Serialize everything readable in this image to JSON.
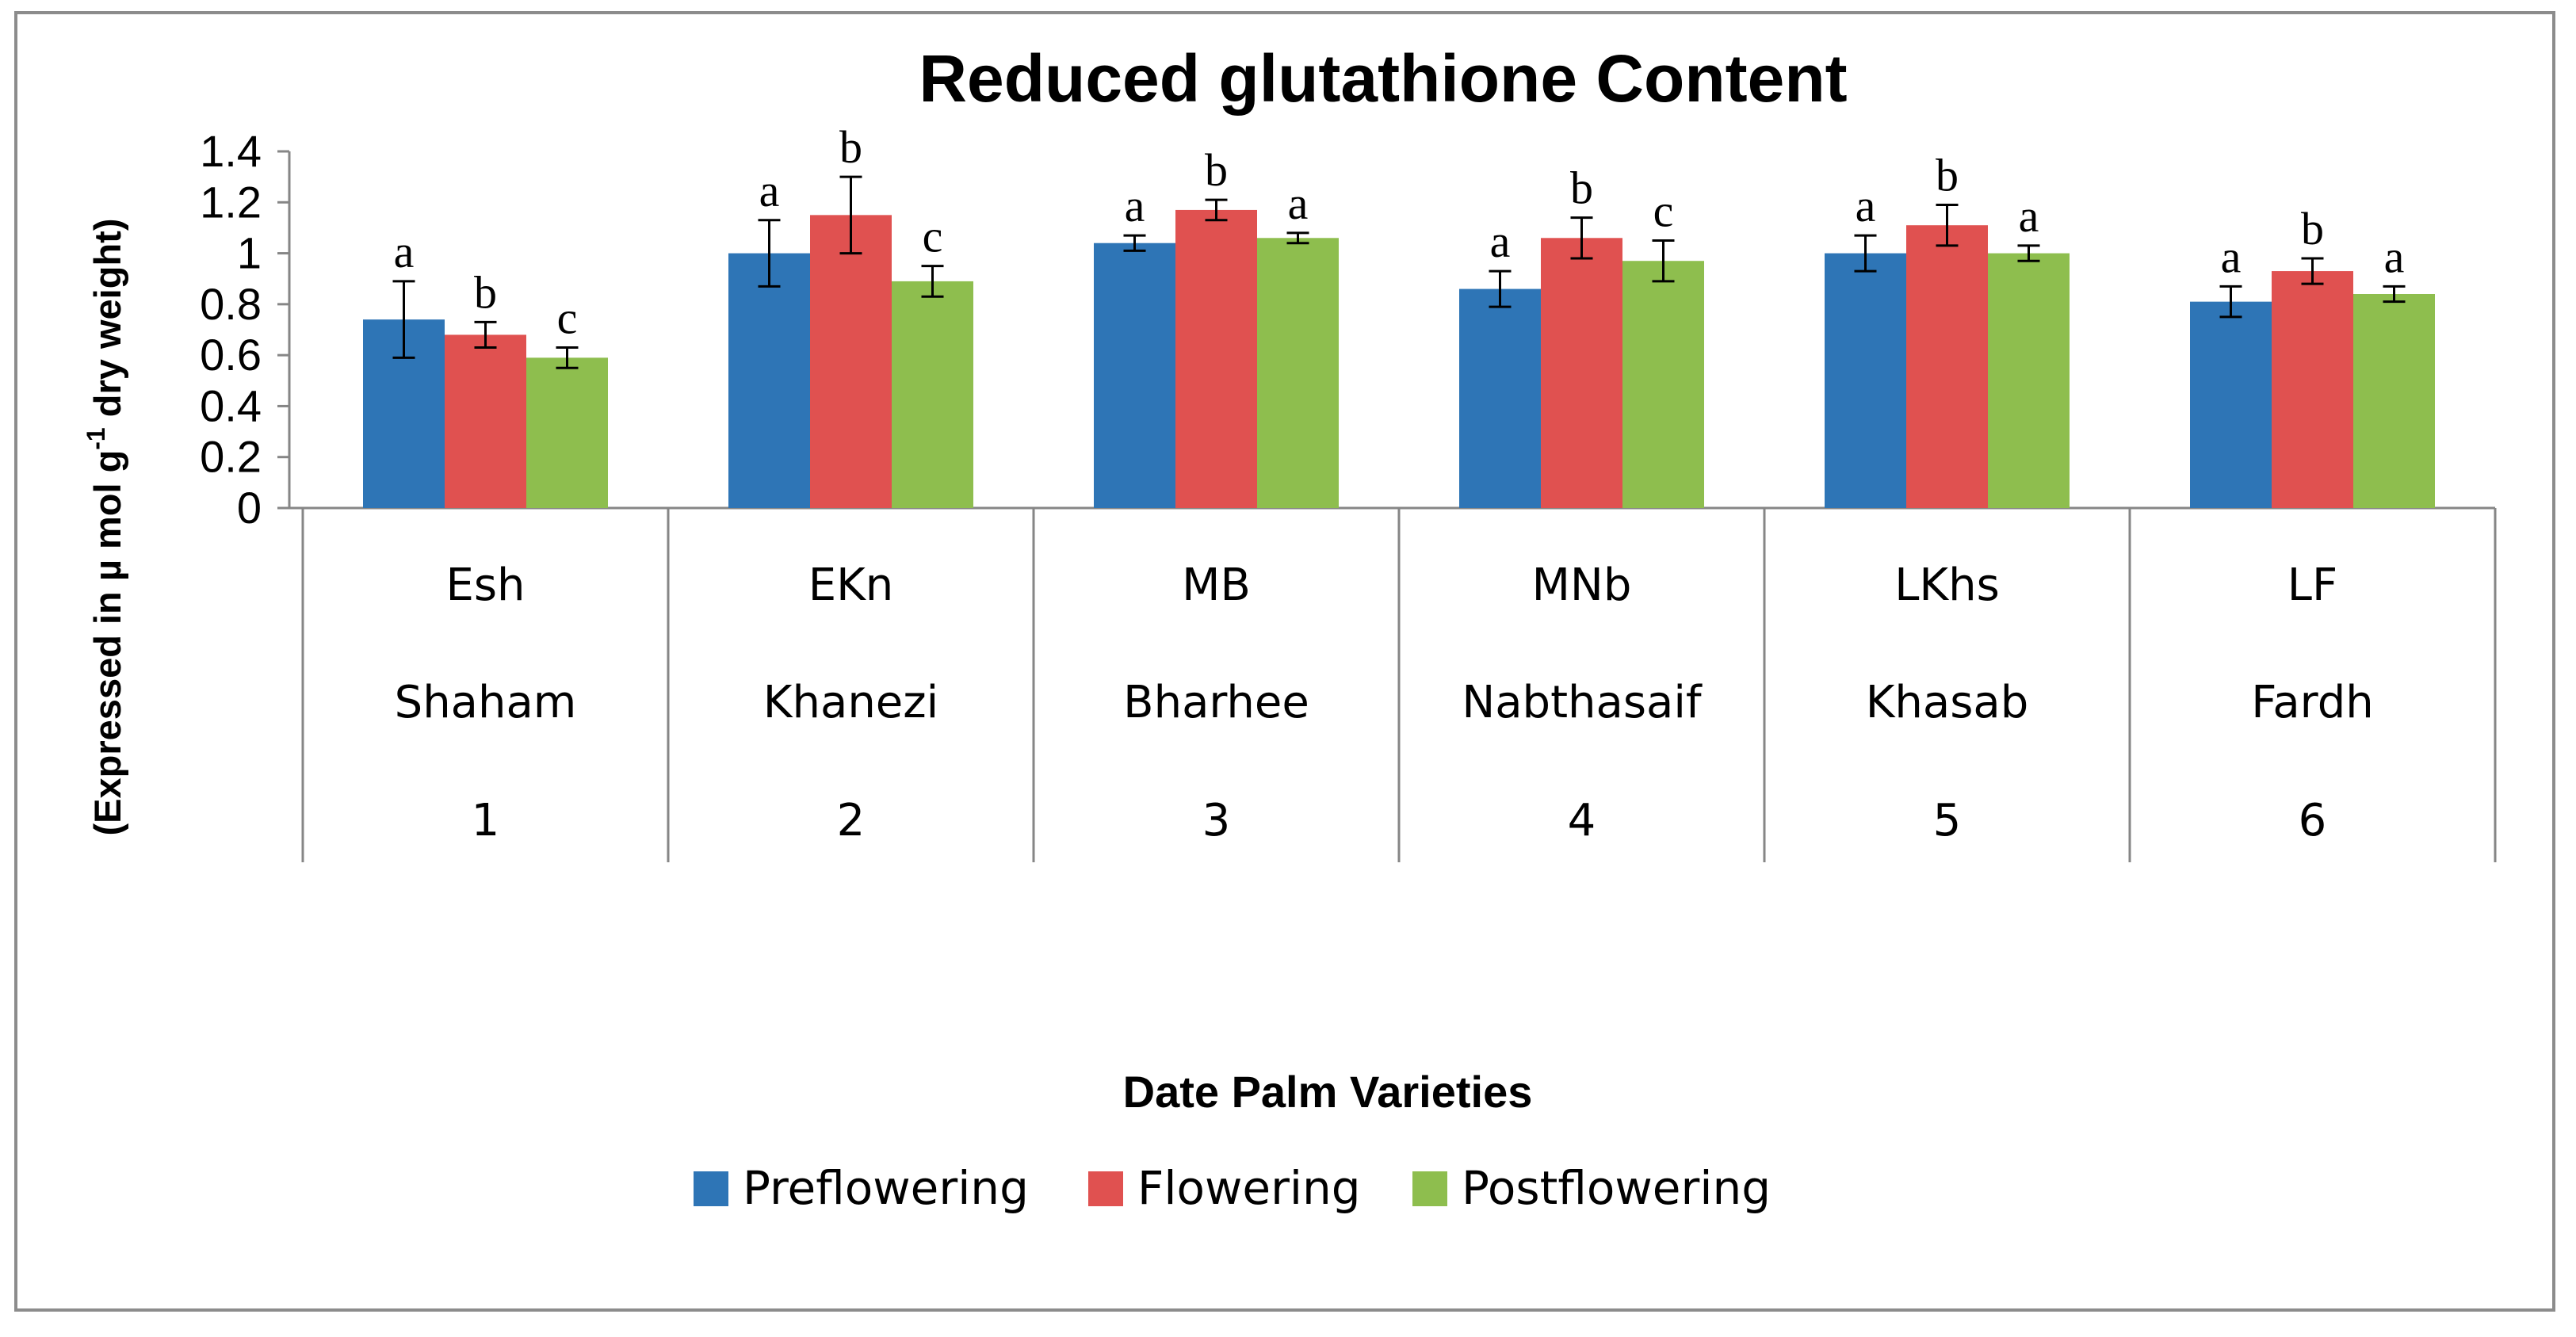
{
  "chart_data": {
    "type": "bar",
    "title": "Reduced glutathione Content",
    "ylabel_main": "(Expressed in µ mol g",
    "ylabel_sup": "-1",
    "ylabel_tail": " dry weight)",
    "xlabel": "Date Palm Varieties",
    "ylim": [
      0,
      1.4
    ],
    "yticks": [
      "0",
      "0.2",
      "0.4",
      "0.6",
      "0.8",
      "1",
      "1.2",
      "1.4"
    ],
    "categories": [
      {
        "code": "Esh",
        "name": "Shaham",
        "number": "1"
      },
      {
        "code": "EKn",
        "name": "Khanezi",
        "number": "2"
      },
      {
        "code": "MB",
        "name": "Bharhee",
        "number": "3"
      },
      {
        "code": "MNb",
        "name": "Nabthasaif",
        "number": "4"
      },
      {
        "code": "LKhs",
        "name": "Khasab",
        "number": "5"
      },
      {
        "code": "LF",
        "name": "Fardh",
        "number": "6"
      }
    ],
    "series": [
      {
        "name": "Preflowering",
        "color": "#2e75b6",
        "values": [
          0.74,
          1.0,
          1.04,
          0.86,
          1.0,
          0.81
        ],
        "errors": [
          0.15,
          0.13,
          0.03,
          0.07,
          0.07,
          0.06
        ],
        "letters": [
          "a",
          "a",
          "a",
          "a",
          "a",
          "a"
        ]
      },
      {
        "name": "Flowering",
        "color": "#e05150",
        "values": [
          0.68,
          1.15,
          1.17,
          1.06,
          1.11,
          0.93
        ],
        "errors": [
          0.05,
          0.15,
          0.04,
          0.08,
          0.08,
          0.05
        ],
        "letters": [
          "b",
          "b",
          "b",
          "b",
          "b",
          "b"
        ]
      },
      {
        "name": "Postflowering",
        "color": "#8ebe4e",
        "values": [
          0.59,
          0.89,
          1.06,
          0.97,
          1.0,
          0.84
        ],
        "errors": [
          0.04,
          0.06,
          0.02,
          0.08,
          0.03,
          0.03
        ],
        "letters": [
          "c",
          "c",
          "a",
          "c",
          "a",
          "a"
        ]
      }
    ]
  }
}
